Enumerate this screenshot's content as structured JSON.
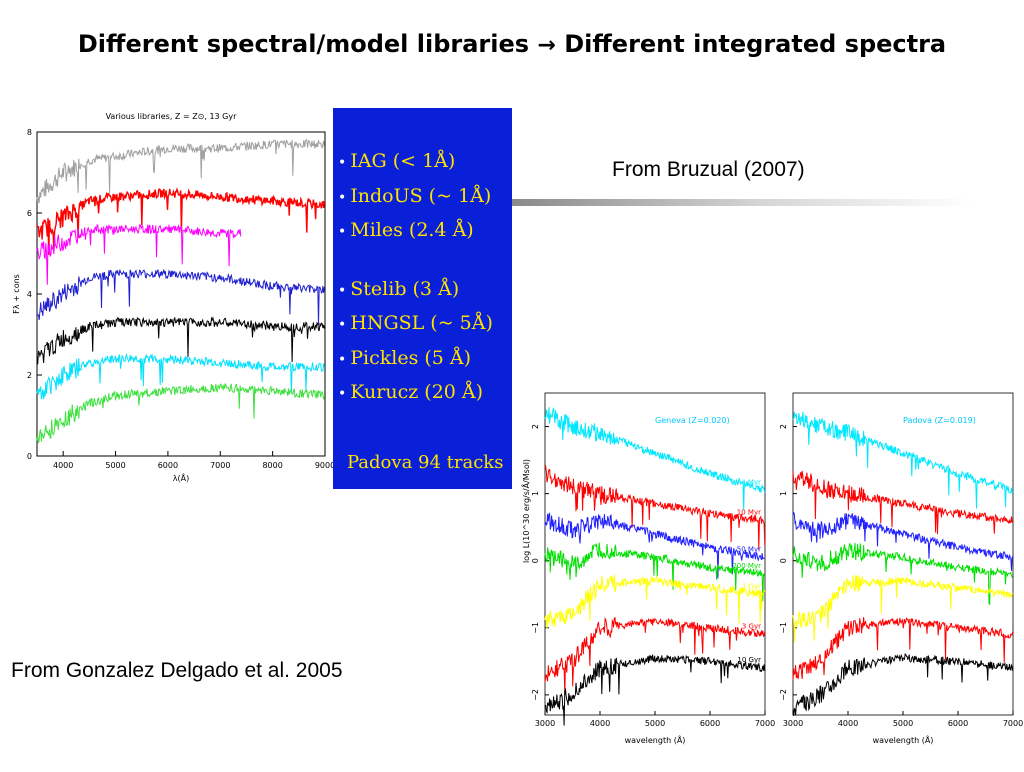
{
  "slide": {
    "title_part1": "Different spectral/model  libraries",
    "title_arrow": "→",
    "title_part2": "Different integrated spectra",
    "caption_bruzual": "From Bruzual (2007)",
    "caption_gonzalez": "From Gonzalez Delgado et al. 2005"
  },
  "left_figure": {
    "plot_title": "Various libraries, Z = Z⊙, 13 Gyr",
    "ylabel": "Fλ + cons",
    "xlabel": "λ(Å)",
    "x_ticks": [
      "4000",
      "5000",
      "6000",
      "7000",
      "8000",
      "9000"
    ],
    "y_ticks": [
      "0",
      "2",
      "4",
      "6",
      "8"
    ],
    "libraries": [
      {
        "label": "IAG (< 1Å)"
      },
      {
        "label": "IndoUS (~ 1Å)"
      },
      {
        "label": "Miles (2.4 Å)"
      },
      {
        "label": "Stelib (3 Å)"
      },
      {
        "label": "HNGSL (~ 5Å)"
      },
      {
        "label": "Pickles (5 Å)"
      },
      {
        "label": "Kurucz (20 Å)"
      }
    ],
    "tracks_label": "Padova 94 tracks",
    "bg_color": "#0a1fd8",
    "text_color": "#ffe200"
  },
  "chart_data": [
    {
      "type": "line",
      "title": "Various libraries, Z = Z⊙, 13 Gyr",
      "xlabel": "λ(Å)",
      "ylabel": "Fλ + cons",
      "xlim": [
        3500,
        9000
      ],
      "ylim": [
        0,
        8
      ],
      "series": [
        {
          "name": "IAG (< 1Å)",
          "color": "#a0a0a0",
          "x": [
            3500,
            4000,
            4500,
            5000,
            6000,
            7000,
            8000,
            9000
          ],
          "values": [
            6.4,
            7.0,
            7.3,
            7.4,
            7.6,
            7.6,
            7.7,
            7.7
          ]
        },
        {
          "name": "IndoUS (~ 1Å)",
          "color": "#ff0000",
          "x": [
            3500,
            4000,
            4500,
            5000,
            6000,
            7000,
            8000,
            9000
          ],
          "values": [
            5.5,
            5.9,
            6.3,
            6.4,
            6.5,
            6.4,
            6.3,
            6.2
          ]
        },
        {
          "name": "Miles (2.4 Å)",
          "color": "#ff00ff",
          "x": [
            3500,
            4000,
            4500,
            5000,
            6000,
            7000,
            7400
          ],
          "values": [
            5.0,
            5.3,
            5.6,
            5.6,
            5.6,
            5.5,
            5.5
          ]
        },
        {
          "name": "Stelib (3 Å)",
          "color": "#2020d0",
          "x": [
            3500,
            4000,
            4500,
            5000,
            6000,
            7000,
            8000,
            9000
          ],
          "values": [
            3.5,
            4.0,
            4.4,
            4.5,
            4.5,
            4.4,
            4.2,
            4.1
          ]
        },
        {
          "name": "HNGSL (~ 5Å)",
          "color": "#000000",
          "x": [
            3500,
            4000,
            4500,
            5000,
            6000,
            7000,
            8000,
            9000
          ],
          "values": [
            2.4,
            2.9,
            3.2,
            3.3,
            3.3,
            3.3,
            3.2,
            3.2
          ]
        },
        {
          "name": "Pickles (5 Å)",
          "color": "#00e0ff",
          "x": [
            3500,
            4000,
            4500,
            5000,
            6000,
            7000,
            8000,
            9000
          ],
          "values": [
            1.5,
            2.0,
            2.3,
            2.4,
            2.4,
            2.3,
            2.2,
            2.2
          ]
        },
        {
          "name": "Kurucz (20 Å)",
          "color": "#40e040",
          "x": [
            3500,
            4000,
            4500,
            5000,
            6000,
            7000,
            8000,
            9000
          ],
          "values": [
            0.4,
            0.9,
            1.3,
            1.5,
            1.6,
            1.7,
            1.6,
            1.5
          ]
        }
      ]
    },
    {
      "type": "line",
      "title": "Geneva (Z=0.020)",
      "xlabel": "wavelength (Å)",
      "ylabel": "log L(10^30 erg/s/Å/Msol)",
      "xlim": [
        3000,
        7000
      ],
      "ylim": [
        -2.3,
        2.5
      ],
      "x_ticks": [
        "3000",
        "4000",
        "5000",
        "6000",
        "7000"
      ],
      "y_ticks": [
        "−2",
        "−1",
        "0",
        "1",
        "2"
      ],
      "series": [
        {
          "name": "4 Myr",
          "color": "#00e8ff",
          "x": [
            3000,
            3500,
            4000,
            5000,
            6000,
            7000
          ],
          "values": [
            2.2,
            2.0,
            1.9,
            1.6,
            1.3,
            1.05
          ]
        },
        {
          "name": "10 Myr",
          "color": "#ff0000",
          "x": [
            3000,
            3500,
            4000,
            5000,
            6000,
            7000
          ],
          "values": [
            1.3,
            1.1,
            1.0,
            0.85,
            0.7,
            0.6
          ]
        },
        {
          "name": "50 Myr",
          "color": "#2020ff",
          "x": [
            3000,
            3500,
            4000,
            5000,
            6000,
            7000
          ],
          "values": [
            0.6,
            0.45,
            0.6,
            0.4,
            0.2,
            0.05
          ]
        },
        {
          "name": "200 Myr",
          "color": "#00e000",
          "x": [
            3000,
            3500,
            4000,
            5000,
            6000,
            7000
          ],
          "values": [
            0.1,
            -0.05,
            0.15,
            0.05,
            -0.1,
            -0.2
          ]
        },
        {
          "name": "1 Gyr",
          "color": "#ffff00",
          "x": [
            3000,
            3500,
            4000,
            5000,
            6000,
            7000
          ],
          "values": [
            -0.9,
            -0.8,
            -0.35,
            -0.3,
            -0.4,
            -0.5
          ]
        },
        {
          "name": "3 Gyr",
          "color": "#ff0000",
          "x": [
            3000,
            3500,
            4000,
            5000,
            6000,
            7000
          ],
          "values": [
            -1.7,
            -1.5,
            -1.0,
            -0.9,
            -1.0,
            -1.1
          ]
        },
        {
          "name": "10 Gyr",
          "color": "#000000",
          "x": [
            3000,
            3500,
            4000,
            5000,
            6000,
            7000
          ],
          "values": [
            -2.2,
            -2.0,
            -1.6,
            -1.45,
            -1.5,
            -1.6
          ]
        }
      ]
    },
    {
      "type": "line",
      "title": "Padova (Z=0.019)",
      "xlabel": "wavelength (Å)",
      "xlim": [
        3000,
        7000
      ],
      "ylim": [
        -2.3,
        2.5
      ],
      "x_ticks": [
        "3000",
        "4000",
        "5000",
        "6000",
        "7000"
      ],
      "y_ticks": [
        "−2",
        "−1",
        "0",
        "1",
        "2"
      ],
      "series": [
        {
          "color": "#00e8ff",
          "x": [
            3000,
            3500,
            4000,
            5000,
            6000,
            7000
          ],
          "values": [
            2.2,
            2.0,
            1.9,
            1.6,
            1.3,
            1.05
          ]
        },
        {
          "color": "#ff0000",
          "x": [
            3000,
            3500,
            4000,
            5000,
            6000,
            7000
          ],
          "values": [
            1.3,
            1.1,
            1.0,
            0.85,
            0.7,
            0.6
          ]
        },
        {
          "color": "#2020ff",
          "x": [
            3000,
            3500,
            4000,
            5000,
            6000,
            7000
          ],
          "values": [
            0.6,
            0.45,
            0.6,
            0.4,
            0.2,
            0.05
          ]
        },
        {
          "color": "#00e000",
          "x": [
            3000,
            3500,
            4000,
            5000,
            6000,
            7000
          ],
          "values": [
            0.1,
            -0.05,
            0.15,
            0.05,
            -0.1,
            -0.2
          ]
        },
        {
          "color": "#ffff00",
          "x": [
            3000,
            3500,
            4000,
            5000,
            6000,
            7000
          ],
          "values": [
            -0.9,
            -0.8,
            -0.35,
            -0.3,
            -0.4,
            -0.5
          ]
        },
        {
          "color": "#ff0000",
          "x": [
            3000,
            3500,
            4000,
            5000,
            6000,
            7000
          ],
          "values": [
            -1.7,
            -1.5,
            -1.0,
            -0.9,
            -1.0,
            -1.1
          ]
        },
        {
          "color": "#000000",
          "x": [
            3000,
            3500,
            4000,
            5000,
            6000,
            7000
          ],
          "values": [
            -2.2,
            -2.0,
            -1.6,
            -1.45,
            -1.5,
            -1.6
          ]
        }
      ]
    }
  ]
}
